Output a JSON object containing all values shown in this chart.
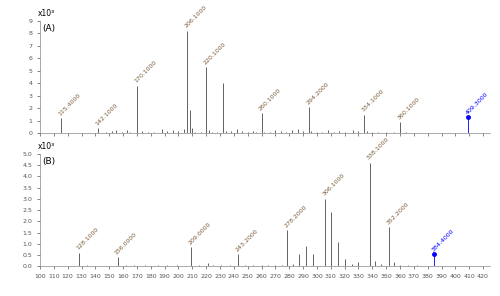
{
  "panel_A": {
    "label": "(A)",
    "ylabel_scale": "x10³",
    "ylim": [
      0,
      9
    ],
    "yticks": [
      0,
      1,
      2,
      3,
      4,
      5,
      6,
      7,
      8,
      9
    ],
    "xlim": [
      100,
      425
    ],
    "peaks": [
      {
        "mz": 115.4,
        "intensity": 1.2,
        "label": "115.4000",
        "labeled": true,
        "color": "#4a4a4a"
      },
      {
        "mz": 142.1,
        "intensity": 0.4,
        "label": "142.1000",
        "labeled": true,
        "color": "#4a4a4a"
      },
      {
        "mz": 148.0,
        "intensity": 0.12,
        "label": "",
        "labeled": false,
        "color": "#4a4a4a"
      },
      {
        "mz": 152.0,
        "intensity": 0.18,
        "label": "",
        "labeled": false,
        "color": "#4a4a4a"
      },
      {
        "mz": 155.0,
        "intensity": 0.25,
        "label": "",
        "labeled": false,
        "color": "#4a4a4a"
      },
      {
        "mz": 159.0,
        "intensity": 0.1,
        "label": "",
        "labeled": false,
        "color": "#4a4a4a"
      },
      {
        "mz": 163.0,
        "intensity": 0.3,
        "label": "",
        "labeled": false,
        "color": "#4a4a4a"
      },
      {
        "mz": 165.0,
        "intensity": 0.15,
        "label": "",
        "labeled": false,
        "color": "#4a4a4a"
      },
      {
        "mz": 170.1,
        "intensity": 3.8,
        "label": "170.1000",
        "labeled": true,
        "color": "#4a4a4a"
      },
      {
        "mz": 174.0,
        "intensity": 0.2,
        "label": "",
        "labeled": false,
        "color": "#4a4a4a"
      },
      {
        "mz": 178.0,
        "intensity": 0.15,
        "label": "",
        "labeled": false,
        "color": "#4a4a4a"
      },
      {
        "mz": 182.0,
        "intensity": 0.12,
        "label": "",
        "labeled": false,
        "color": "#4a4a4a"
      },
      {
        "mz": 188.0,
        "intensity": 0.35,
        "label": "",
        "labeled": false,
        "color": "#4a4a4a"
      },
      {
        "mz": 192.0,
        "intensity": 0.18,
        "label": "",
        "labeled": false,
        "color": "#4a4a4a"
      },
      {
        "mz": 196.0,
        "intensity": 0.25,
        "label": "",
        "labeled": false,
        "color": "#4a4a4a"
      },
      {
        "mz": 200.0,
        "intensity": 0.18,
        "label": "",
        "labeled": false,
        "color": "#4a4a4a"
      },
      {
        "mz": 204.0,
        "intensity": 0.35,
        "label": "",
        "labeled": false,
        "color": "#4a4a4a"
      },
      {
        "mz": 206.1,
        "intensity": 8.2,
        "label": "206.1000",
        "labeled": true,
        "color": "#4a4a4a"
      },
      {
        "mz": 208.0,
        "intensity": 1.9,
        "label": "",
        "labeled": false,
        "color": "#4a4a4a"
      },
      {
        "mz": 210.0,
        "intensity": 0.4,
        "label": "",
        "labeled": false,
        "color": "#4a4a4a"
      },
      {
        "mz": 212.0,
        "intensity": 0.15,
        "label": "",
        "labeled": false,
        "color": "#4a4a4a"
      },
      {
        "mz": 216.0,
        "intensity": 0.12,
        "label": "",
        "labeled": false,
        "color": "#4a4a4a"
      },
      {
        "mz": 220.1,
        "intensity": 5.3,
        "label": "220.1000",
        "labeled": true,
        "color": "#4a4a4a"
      },
      {
        "mz": 222.0,
        "intensity": 0.3,
        "label": "",
        "labeled": false,
        "color": "#4a4a4a"
      },
      {
        "mz": 224.0,
        "intensity": 0.15,
        "label": "",
        "labeled": false,
        "color": "#4a4a4a"
      },
      {
        "mz": 228.0,
        "intensity": 0.12,
        "label": "",
        "labeled": false,
        "color": "#4a4a4a"
      },
      {
        "mz": 232.0,
        "intensity": 4.0,
        "label": "",
        "labeled": false,
        "color": "#4a4a4a"
      },
      {
        "mz": 234.0,
        "intensity": 0.2,
        "label": "",
        "labeled": false,
        "color": "#4a4a4a"
      },
      {
        "mz": 238.0,
        "intensity": 0.18,
        "label": "",
        "labeled": false,
        "color": "#4a4a4a"
      },
      {
        "mz": 242.0,
        "intensity": 0.35,
        "label": "",
        "labeled": false,
        "color": "#4a4a4a"
      },
      {
        "mz": 246.0,
        "intensity": 0.18,
        "label": "",
        "labeled": false,
        "color": "#4a4a4a"
      },
      {
        "mz": 250.0,
        "intensity": 0.12,
        "label": "",
        "labeled": false,
        "color": "#4a4a4a"
      },
      {
        "mz": 254.0,
        "intensity": 0.18,
        "label": "",
        "labeled": false,
        "color": "#4a4a4a"
      },
      {
        "mz": 256.0,
        "intensity": 0.15,
        "label": "",
        "labeled": false,
        "color": "#4a4a4a"
      },
      {
        "mz": 260.1,
        "intensity": 1.6,
        "label": "260.1000",
        "labeled": true,
        "color": "#4a4a4a"
      },
      {
        "mz": 262.0,
        "intensity": 0.12,
        "label": "",
        "labeled": false,
        "color": "#4a4a4a"
      },
      {
        "mz": 266.0,
        "intensity": 0.15,
        "label": "",
        "labeled": false,
        "color": "#4a4a4a"
      },
      {
        "mz": 270.0,
        "intensity": 0.25,
        "label": "",
        "labeled": false,
        "color": "#4a4a4a"
      },
      {
        "mz": 274.0,
        "intensity": 0.18,
        "label": "",
        "labeled": false,
        "color": "#4a4a4a"
      },
      {
        "mz": 278.0,
        "intensity": 0.12,
        "label": "",
        "labeled": false,
        "color": "#4a4a4a"
      },
      {
        "mz": 282.0,
        "intensity": 0.25,
        "label": "",
        "labeled": false,
        "color": "#4a4a4a"
      },
      {
        "mz": 286.0,
        "intensity": 0.35,
        "label": "",
        "labeled": false,
        "color": "#4a4a4a"
      },
      {
        "mz": 290.0,
        "intensity": 0.18,
        "label": "",
        "labeled": false,
        "color": "#4a4a4a"
      },
      {
        "mz": 294.2,
        "intensity": 2.1,
        "label": "294.2000",
        "labeled": true,
        "color": "#4a4a4a"
      },
      {
        "mz": 296.0,
        "intensity": 0.2,
        "label": "",
        "labeled": false,
        "color": "#4a4a4a"
      },
      {
        "mz": 300.0,
        "intensity": 0.12,
        "label": "",
        "labeled": false,
        "color": "#4a4a4a"
      },
      {
        "mz": 304.0,
        "intensity": 0.15,
        "label": "",
        "labeled": false,
        "color": "#4a4a4a"
      },
      {
        "mz": 308.0,
        "intensity": 0.25,
        "label": "",
        "labeled": false,
        "color": "#4a4a4a"
      },
      {
        "mz": 312.0,
        "intensity": 0.12,
        "label": "",
        "labeled": false,
        "color": "#4a4a4a"
      },
      {
        "mz": 316.0,
        "intensity": 0.18,
        "label": "",
        "labeled": false,
        "color": "#4a4a4a"
      },
      {
        "mz": 320.0,
        "intensity": 0.12,
        "label": "",
        "labeled": false,
        "color": "#4a4a4a"
      },
      {
        "mz": 326.0,
        "intensity": 0.25,
        "label": "",
        "labeled": false,
        "color": "#4a4a4a"
      },
      {
        "mz": 330.0,
        "intensity": 0.18,
        "label": "",
        "labeled": false,
        "color": "#4a4a4a"
      },
      {
        "mz": 334.1,
        "intensity": 1.5,
        "label": "334.1000",
        "labeled": true,
        "color": "#4a4a4a"
      },
      {
        "mz": 336.0,
        "intensity": 0.18,
        "label": "",
        "labeled": false,
        "color": "#4a4a4a"
      },
      {
        "mz": 340.0,
        "intensity": 0.12,
        "label": "",
        "labeled": false,
        "color": "#4a4a4a"
      },
      {
        "mz": 344.0,
        "intensity": 0.1,
        "label": "",
        "labeled": false,
        "color": "#4a4a4a"
      },
      {
        "mz": 350.0,
        "intensity": 0.12,
        "label": "",
        "labeled": false,
        "color": "#4a4a4a"
      },
      {
        "mz": 356.0,
        "intensity": 0.1,
        "label": "",
        "labeled": false,
        "color": "#4a4a4a"
      },
      {
        "mz": 360.1,
        "intensity": 0.9,
        "label": "360.1000",
        "labeled": true,
        "color": "#4a4a4a"
      },
      {
        "mz": 364.0,
        "intensity": 0.1,
        "label": "",
        "labeled": false,
        "color": "#4a4a4a"
      },
      {
        "mz": 409.3,
        "intensity": 1.3,
        "label": "409.3000",
        "labeled": true,
        "color": "blue"
      }
    ]
  },
  "panel_B": {
    "label": "(B)",
    "ylabel_scale": "x10³",
    "ylim": [
      0,
      5
    ],
    "yticks": [
      0,
      0.5,
      1.0,
      1.5,
      2.0,
      2.5,
      3.0,
      3.5,
      4.0,
      4.5,
      5.0
    ],
    "xlim": [
      100,
      425
    ],
    "peaks": [
      {
        "mz": 128.1,
        "intensity": 0.6,
        "label": "128.1000",
        "labeled": true,
        "color": "#4a4a4a"
      },
      {
        "mz": 134.0,
        "intensity": 0.05,
        "label": "",
        "labeled": false,
        "color": "#4a4a4a"
      },
      {
        "mz": 156.0,
        "intensity": 0.4,
        "label": "156.0000",
        "labeled": true,
        "color": "#4a4a4a"
      },
      {
        "mz": 162.0,
        "intensity": 0.05,
        "label": "",
        "labeled": false,
        "color": "#4a4a4a"
      },
      {
        "mz": 168.0,
        "intensity": 0.04,
        "label": "",
        "labeled": false,
        "color": "#4a4a4a"
      },
      {
        "mz": 176.0,
        "intensity": 0.04,
        "label": "",
        "labeled": false,
        "color": "#4a4a4a"
      },
      {
        "mz": 185.0,
        "intensity": 0.04,
        "label": "",
        "labeled": false,
        "color": "#4a4a4a"
      },
      {
        "mz": 192.0,
        "intensity": 0.04,
        "label": "",
        "labeled": false,
        "color": "#4a4a4a"
      },
      {
        "mz": 199.0,
        "intensity": 0.04,
        "label": "",
        "labeled": false,
        "color": "#4a4a4a"
      },
      {
        "mz": 209.0,
        "intensity": 0.85,
        "label": "209.0000",
        "labeled": true,
        "color": "#4a4a4a"
      },
      {
        "mz": 215.0,
        "intensity": 0.04,
        "label": "",
        "labeled": false,
        "color": "#4a4a4a"
      },
      {
        "mz": 221.0,
        "intensity": 0.15,
        "label": "",
        "labeled": false,
        "color": "#4a4a4a"
      },
      {
        "mz": 225.0,
        "intensity": 0.04,
        "label": "",
        "labeled": false,
        "color": "#4a4a4a"
      },
      {
        "mz": 231.0,
        "intensity": 0.04,
        "label": "",
        "labeled": false,
        "color": "#4a4a4a"
      },
      {
        "mz": 237.0,
        "intensity": 0.04,
        "label": "",
        "labeled": false,
        "color": "#4a4a4a"
      },
      {
        "mz": 243.2,
        "intensity": 0.55,
        "label": "243.2000",
        "labeled": true,
        "color": "#4a4a4a"
      },
      {
        "mz": 248.0,
        "intensity": 0.08,
        "label": "",
        "labeled": false,
        "color": "#4a4a4a"
      },
      {
        "mz": 254.0,
        "intensity": 0.08,
        "label": "",
        "labeled": false,
        "color": "#4a4a4a"
      },
      {
        "mz": 260.0,
        "intensity": 0.04,
        "label": "",
        "labeled": false,
        "color": "#4a4a4a"
      },
      {
        "mz": 265.0,
        "intensity": 0.04,
        "label": "",
        "labeled": false,
        "color": "#4a4a4a"
      },
      {
        "mz": 270.0,
        "intensity": 0.08,
        "label": "",
        "labeled": false,
        "color": "#4a4a4a"
      },
      {
        "mz": 275.0,
        "intensity": 0.08,
        "label": "",
        "labeled": false,
        "color": "#4a4a4a"
      },
      {
        "mz": 278.2,
        "intensity": 1.6,
        "label": "278.2000",
        "labeled": true,
        "color": "#4a4a4a"
      },
      {
        "mz": 283.0,
        "intensity": 0.12,
        "label": "",
        "labeled": false,
        "color": "#4a4a4a"
      },
      {
        "mz": 287.0,
        "intensity": 0.55,
        "label": "",
        "labeled": false,
        "color": "#4a4a4a"
      },
      {
        "mz": 292.0,
        "intensity": 0.9,
        "label": "",
        "labeled": false,
        "color": "#4a4a4a"
      },
      {
        "mz": 297.0,
        "intensity": 0.55,
        "label": "",
        "labeled": false,
        "color": "#4a4a4a"
      },
      {
        "mz": 306.1,
        "intensity": 3.0,
        "label": "306.1000",
        "labeled": true,
        "color": "#4a4a4a"
      },
      {
        "mz": 310.0,
        "intensity": 2.4,
        "label": "",
        "labeled": false,
        "color": "#4a4a4a"
      },
      {
        "mz": 315.0,
        "intensity": 1.1,
        "label": "",
        "labeled": false,
        "color": "#4a4a4a"
      },
      {
        "mz": 320.0,
        "intensity": 0.35,
        "label": "",
        "labeled": false,
        "color": "#4a4a4a"
      },
      {
        "mz": 325.0,
        "intensity": 0.12,
        "label": "",
        "labeled": false,
        "color": "#4a4a4a"
      },
      {
        "mz": 330.0,
        "intensity": 0.18,
        "label": "",
        "labeled": false,
        "color": "#4a4a4a"
      },
      {
        "mz": 338.1,
        "intensity": 4.6,
        "label": "338.1000",
        "labeled": true,
        "color": "#4a4a4a"
      },
      {
        "mz": 342.0,
        "intensity": 0.25,
        "label": "",
        "labeled": false,
        "color": "#4a4a4a"
      },
      {
        "mz": 346.0,
        "intensity": 0.12,
        "label": "",
        "labeled": false,
        "color": "#4a4a4a"
      },
      {
        "mz": 352.2,
        "intensity": 1.75,
        "label": "352.2000",
        "labeled": true,
        "color": "#4a4a4a"
      },
      {
        "mz": 356.0,
        "intensity": 0.18,
        "label": "",
        "labeled": false,
        "color": "#4a4a4a"
      },
      {
        "mz": 360.0,
        "intensity": 0.08,
        "label": "",
        "labeled": false,
        "color": "#4a4a4a"
      },
      {
        "mz": 366.0,
        "intensity": 0.08,
        "label": "",
        "labeled": false,
        "color": "#4a4a4a"
      },
      {
        "mz": 372.0,
        "intensity": 0.04,
        "label": "",
        "labeled": false,
        "color": "#4a4a4a"
      },
      {
        "mz": 384.4,
        "intensity": 0.55,
        "label": "384.4000",
        "labeled": true,
        "color": "blue"
      }
    ]
  },
  "xticks": [
    100,
    110,
    120,
    130,
    140,
    150,
    160,
    170,
    180,
    190,
    200,
    210,
    220,
    230,
    240,
    250,
    260,
    270,
    280,
    290,
    300,
    310,
    320,
    330,
    340,
    350,
    360,
    370,
    380,
    390,
    400,
    410,
    420
  ],
  "bg_color": "#ffffff",
  "label_color": "#7a5c3a",
  "label_fontsize": 4.5,
  "tick_fontsize": 4.5,
  "scale_fontsize": 5.5,
  "line_color": "#4a4a4a",
  "line_width": 0.6
}
